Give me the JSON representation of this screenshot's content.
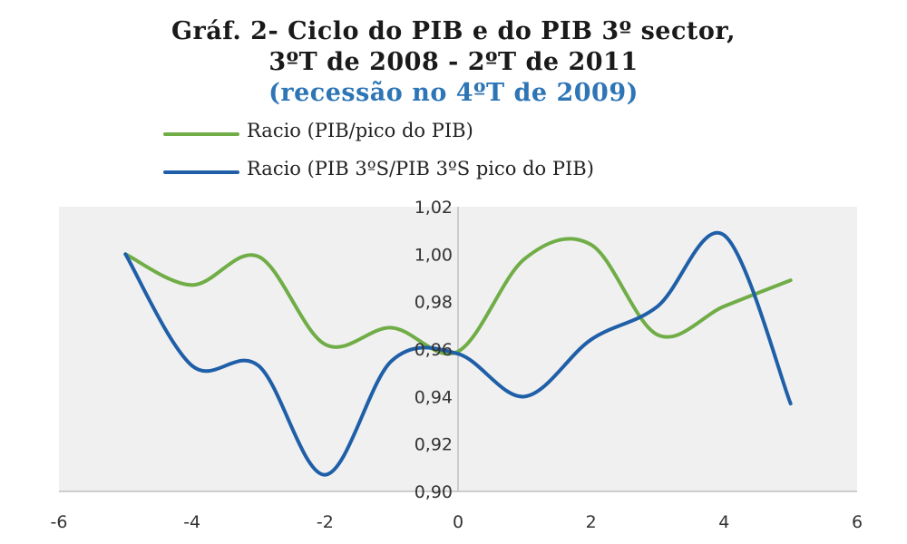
{
  "chart_data": {
    "type": "line",
    "title": "Gráf. 2- Ciclo do PIB e do PIB 3º sector,",
    "title_line2": "3ºT de 2008 - 2ºT de 2011",
    "subtitle": "(recessão no 4ºT de 2009)",
    "xlabel": "",
    "ylabel": "",
    "xlim": [
      -6,
      6
    ],
    "ylim": [
      0.9,
      1.02
    ],
    "x_ticks": [
      -6,
      -4,
      -2,
      0,
      2,
      4,
      6
    ],
    "x_tick_labels": [
      "-6",
      "-4",
      "-2",
      "0",
      "2",
      "4",
      "6"
    ],
    "y_ticks": [
      0.9,
      0.92,
      0.94,
      0.96,
      0.98,
      1.0,
      1.02
    ],
    "y_tick_labels": [
      "0,90",
      "0,92",
      "0,94",
      "0,96",
      "0,98",
      "1,00",
      "1,02"
    ],
    "grid": false,
    "legend_position": "top-left",
    "plot_background": "#f0f0f0",
    "series": [
      {
        "name": "Racio (PIB/pico do PIB)",
        "color": "#70ad47",
        "x": [
          -5,
          -4,
          -3,
          -2,
          -1,
          0,
          1,
          2,
          3,
          4,
          5
        ],
        "y": [
          1.0,
          0.987,
          0.999,
          0.962,
          0.969,
          0.959,
          0.998,
          1.004,
          0.966,
          0.978,
          0.989
        ]
      },
      {
        "name": "Racio (PIB 3ºS/PIB 3ºS pico do PIB)",
        "color": "#1f5fa8",
        "x": [
          -5,
          -4,
          -3,
          -2,
          -1,
          0,
          1,
          2,
          3,
          4,
          5
        ],
        "y": [
          1.0,
          0.953,
          0.953,
          0.907,
          0.955,
          0.958,
          0.94,
          0.964,
          0.978,
          1.008,
          0.937
        ]
      }
    ]
  }
}
